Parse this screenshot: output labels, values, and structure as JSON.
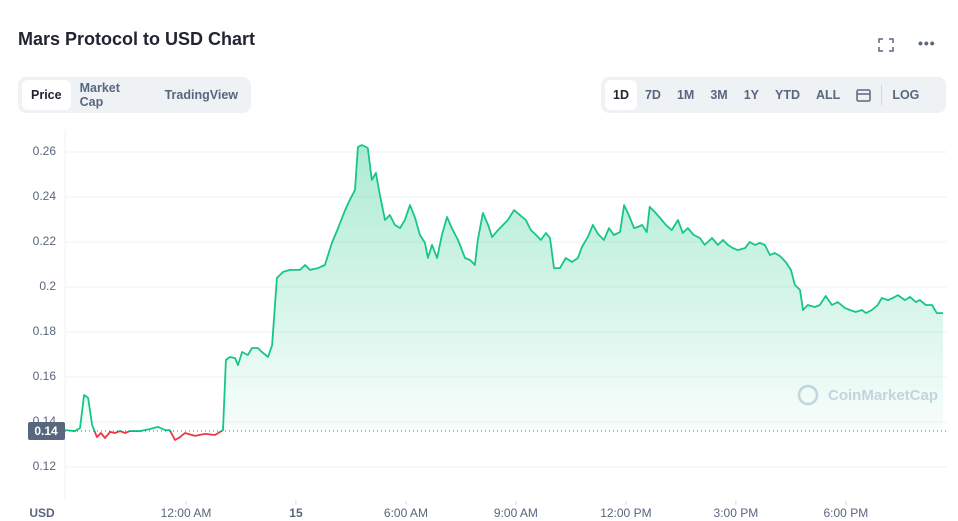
{
  "controls": {
    "tabs": [
      "Price",
      "Market Cap",
      "TradingView"
    ],
    "ranges": [
      "1D",
      "7D",
      "1M",
      "3M",
      "1Y",
      "YTD",
      "ALL"
    ],
    "log": "LOG"
  },
  "chart_data": {
    "type": "line",
    "title": "Mars Protocol to USD Chart",
    "y_label": "USD",
    "watermark": "CoinMarketCap",
    "up_color": "#16c784",
    "down_color": "#ea3943",
    "reference": {
      "value": 0.136,
      "label": "0.14"
    },
    "xlim": [
      -3.3,
      20.65
    ],
    "ylim": [
      0.105,
      0.27
    ],
    "xticks": [
      {
        "value": 0,
        "label": "12:00 AM"
      },
      {
        "value": 3,
        "label": "15"
      },
      {
        "value": 6,
        "label": "6:00 AM"
      },
      {
        "value": 9,
        "label": "9:00 AM"
      },
      {
        "value": 12,
        "label": "12:00 PM"
      },
      {
        "value": 15,
        "label": "3:00 PM"
      },
      {
        "value": 18,
        "label": "6:00 PM"
      }
    ],
    "yticks": [
      0.12,
      0.14,
      0.16,
      0.18,
      0.2,
      0.22,
      0.24,
      0.26
    ],
    "grid": true,
    "x": [
      -3.3,
      -3.03,
      -2.89,
      -2.78,
      -2.67,
      -2.56,
      -2.43,
      -2.32,
      -2.21,
      -2.07,
      -1.94,
      -1.8,
      -1.66,
      -1.53,
      -1.25,
      -0.98,
      -0.76,
      -0.57,
      -0.44,
      -0.3,
      -0.16,
      -0.03,
      0.25,
      0.52,
      0.79,
      0.93,
      1.01,
      1.09,
      1.2,
      1.34,
      1.42,
      1.53,
      1.69,
      1.8,
      1.96,
      2.07,
      2.24,
      2.35,
      2.48,
      2.65,
      2.84,
      3.11,
      3.25,
      3.38,
      3.6,
      3.79,
      3.98,
      4.15,
      4.34,
      4.47,
      4.61,
      4.69,
      4.8,
      4.96,
      5.07,
      5.18,
      5.29,
      5.43,
      5.56,
      5.7,
      5.84,
      5.97,
      6.11,
      6.25,
      6.38,
      6.52,
      6.6,
      6.71,
      6.85,
      6.98,
      7.12,
      7.25,
      7.42,
      7.61,
      7.75,
      7.88,
      7.96,
      8.1,
      8.24,
      8.35,
      8.51,
      8.65,
      8.78,
      8.95,
      9.11,
      9.27,
      9.41,
      9.55,
      9.68,
      9.82,
      9.93,
      10.04,
      10.2,
      10.36,
      10.53,
      10.69,
      10.8,
      10.96,
      11.1,
      11.24,
      11.4,
      11.54,
      11.67,
      11.84,
      11.95,
      12.08,
      12.22,
      12.33,
      12.44,
      12.57,
      12.65,
      12.79,
      12.93,
      13.09,
      13.25,
      13.42,
      13.55,
      13.69,
      13.85,
      14.02,
      14.15,
      14.35,
      14.51,
      14.65,
      14.78,
      14.92,
      15.05,
      15.25,
      15.38,
      15.52,
      15.65,
      15.79,
      15.93,
      16.06,
      16.2,
      16.36,
      16.5,
      16.61,
      16.75,
      16.83,
      16.96,
      17.15,
      17.29,
      17.45,
      17.62,
      17.78,
      17.97,
      18.11,
      18.27,
      18.44,
      18.55,
      18.71,
      18.87,
      18.98,
      19.15,
      19.28,
      19.42,
      19.61,
      19.75,
      19.91,
      20.02,
      20.18,
      20.35,
      20.48,
      20.65
    ],
    "values": [
      0.1364,
      0.136,
      0.1373,
      0.152,
      0.1507,
      0.1387,
      0.1333,
      0.1351,
      0.1329,
      0.1356,
      0.1351,
      0.136,
      0.1351,
      0.136,
      0.136,
      0.1369,
      0.1378,
      0.1364,
      0.1364,
      0.132,
      0.1333,
      0.1351,
      0.1338,
      0.1347,
      0.1342,
      0.1356,
      0.1364,
      0.1676,
      0.1689,
      0.1684,
      0.1653,
      0.1711,
      0.1698,
      0.1729,
      0.1729,
      0.1711,
      0.1689,
      0.1742,
      0.204,
      0.2067,
      0.2076,
      0.2076,
      0.2098,
      0.2076,
      0.2084,
      0.2098,
      0.2196,
      0.2262,
      0.2342,
      0.2387,
      0.2431,
      0.2622,
      0.2631,
      0.2618,
      0.2476,
      0.2507,
      0.2409,
      0.2298,
      0.232,
      0.2276,
      0.2262,
      0.2298,
      0.2364,
      0.2307,
      0.2231,
      0.2196,
      0.2129,
      0.2187,
      0.2129,
      0.2231,
      0.2311,
      0.2262,
      0.2209,
      0.2129,
      0.212,
      0.2098,
      0.2209,
      0.2329,
      0.2276,
      0.2222,
      0.2253,
      0.2276,
      0.2298,
      0.2342,
      0.232,
      0.2298,
      0.2253,
      0.2231,
      0.2209,
      0.224,
      0.2218,
      0.2084,
      0.2084,
      0.2129,
      0.2111,
      0.2129,
      0.2178,
      0.2222,
      0.2276,
      0.2236,
      0.2209,
      0.2262,
      0.2231,
      0.2244,
      0.2364,
      0.232,
      0.2262,
      0.2267,
      0.2276,
      0.2244,
      0.2356,
      0.2333,
      0.2307,
      0.2276,
      0.2253,
      0.2298,
      0.224,
      0.2262,
      0.2231,
      0.2218,
      0.2187,
      0.2218,
      0.2187,
      0.2209,
      0.2187,
      0.2173,
      0.2164,
      0.2173,
      0.22,
      0.2187,
      0.2196,
      0.2187,
      0.2142,
      0.2151,
      0.2138,
      0.2111,
      0.2076,
      0.2009,
      0.1987,
      0.1898,
      0.192,
      0.1911,
      0.192,
      0.196,
      0.192,
      0.1933,
      0.1907,
      0.1898,
      0.1889,
      0.1898,
      0.1884,
      0.1898,
      0.192,
      0.1951,
      0.1942,
      0.1951,
      0.1964,
      0.1942,
      0.1956,
      0.1933,
      0.1942,
      0.192,
      0.192,
      0.1884,
      0.1884
    ]
  }
}
